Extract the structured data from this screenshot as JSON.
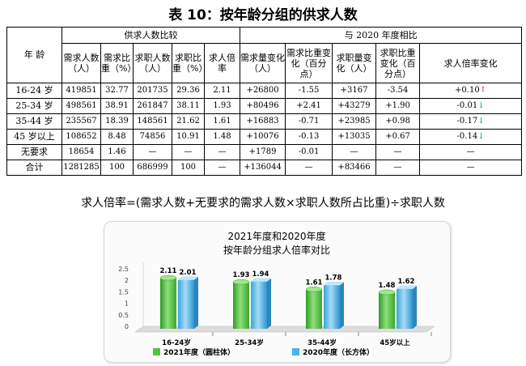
{
  "title": "表 10：按年龄分组的供求人数",
  "table": {
    "header_age": "年 龄",
    "group1": "供求人数比较",
    "group2": "与 2020 年度相比",
    "columns": [
      "需求人数（人）",
      "需求比重（%）",
      "求职人数（人）",
      "求职比重（%）",
      "求人倍率",
      "需求量变化（人）",
      "需求比重变化（百分点）",
      "求职量变化（人）",
      "求职比重变化（百分点）",
      "求人倍率变化"
    ],
    "rows": [
      {
        "label": "16-24 岁",
        "cells": [
          "419851",
          "32.77",
          "201735",
          "29.36",
          "2.11",
          "+26800",
          "-1.55",
          "+3167",
          "-3.54",
          "+0.10"
        ],
        "arrow": "↑",
        "trend": "up"
      },
      {
        "label": "25-34 岁",
        "cells": [
          "498561",
          "38.91",
          "261847",
          "38.11",
          "1.93",
          "+80496",
          "+2.41",
          "+43279",
          "+1.90",
          "-0.01"
        ],
        "arrow": "↓",
        "trend": "down"
      },
      {
        "label": "35-44 岁",
        "cells": [
          "235567",
          "18.39",
          "148561",
          "21.62",
          "1.61",
          "+16883",
          "-0.71",
          "+23985",
          "+0.98",
          "-0.17"
        ],
        "arrow": "↓",
        "trend": "down"
      },
      {
        "label": "45 岁以上",
        "cells": [
          "108652",
          "8.48",
          "74856",
          "10.91",
          "1.48",
          "+10076",
          "-0.13",
          "+13035",
          "+0.67",
          "-0.14"
        ],
        "arrow": "↓",
        "trend": "down"
      },
      {
        "label": "无要求",
        "cells": [
          "18654",
          "1.46",
          "—",
          "—",
          "—",
          "+1789",
          "-0.01",
          "—",
          "—",
          "—"
        ],
        "arrow": "",
        "trend": ""
      },
      {
        "label": "合计",
        "cells": [
          "1281285",
          "100",
          "686999",
          "100",
          "—",
          "+136044",
          "—",
          "+83466",
          "—",
          "—"
        ],
        "arrow": "",
        "trend": ""
      }
    ],
    "colors": {
      "up": "#d32020",
      "down": "#1e9a3b"
    }
  },
  "formula": "求人倍率=(需求人数+无要求的需求人数×求职人数所占比重)÷求职人数",
  "chart_data": {
    "type": "bar",
    "title": "2021年度和2020年度",
    "subtitle": "按年龄分组求人倍率对比",
    "categories": [
      "16-24岁",
      "25-34岁",
      "35-44岁",
      "45岁以上"
    ],
    "series": [
      {
        "name": "2021年度（圆柱体）",
        "values": [
          2.11,
          1.93,
          1.61,
          1.48
        ],
        "color": "#4cc63a"
      },
      {
        "name": "2020年度（长方体）",
        "values": [
          2.01,
          1.94,
          1.78,
          1.62
        ],
        "color": "#4db3ea"
      }
    ],
    "yticks": [
      "0",
      "0.5",
      "1",
      "1.5",
      "2",
      "2.5"
    ],
    "ylim": [
      0,
      2.5
    ],
    "grid": false,
    "legend": "bottom"
  }
}
